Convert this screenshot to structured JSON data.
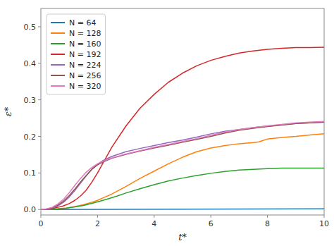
{
  "chart_data": {
    "type": "line",
    "xlabel": "t*",
    "ylabel": "ε*",
    "xlim": [
      0,
      10
    ],
    "ylim": [
      -0.015,
      0.55
    ],
    "xticks": [
      0,
      2,
      4,
      6,
      8,
      10
    ],
    "yticks": [
      {
        "value": 0,
        "label": "0.0"
      },
      0.1,
      0.2,
      0.3,
      0.4,
      0.5
    ],
    "grid": false,
    "legend": "upper left",
    "series": [
      {
        "name": "N = 64",
        "color": "#1f77b4",
        "x": [
          0,
          10
        ],
        "values": [
          0.0,
          0.002
        ]
      },
      {
        "name": "N = 128",
        "color": "#ff7f0e",
        "x": [
          0,
          0.3,
          0.6,
          0.9,
          1.2,
          1.5,
          1.8,
          2.0,
          2.2,
          2.5,
          3.0,
          3.5,
          4.0,
          4.5,
          5.0,
          5.5,
          6.0,
          6.5,
          7.0,
          7.5,
          7.7,
          8.0,
          8.5,
          9.0,
          9.5,
          10.0
        ],
        "values": [
          0.0,
          0.001,
          0.002,
          0.004,
          0.008,
          0.013,
          0.02,
          0.025,
          0.032,
          0.042,
          0.063,
          0.085,
          0.105,
          0.125,
          0.143,
          0.158,
          0.168,
          0.175,
          0.18,
          0.183,
          0.185,
          0.193,
          0.197,
          0.2,
          0.204,
          0.207
        ]
      },
      {
        "name": "N = 160",
        "color": "#2ca02c",
        "x": [
          0,
          0.3,
          0.6,
          0.9,
          1.2,
          1.5,
          1.8,
          2.1,
          2.4,
          2.7,
          3.0,
          3.5,
          4.0,
          4.5,
          5.0,
          5.5,
          6.0,
          6.5,
          7.0,
          7.5,
          8.0,
          8.5,
          9.0,
          9.5,
          10.0
        ],
        "values": [
          0.0,
          0.001,
          0.002,
          0.004,
          0.007,
          0.011,
          0.017,
          0.023,
          0.03,
          0.037,
          0.045,
          0.057,
          0.068,
          0.078,
          0.086,
          0.093,
          0.099,
          0.104,
          0.108,
          0.11,
          0.112,
          0.113,
          0.113,
          0.113,
          0.113
        ]
      },
      {
        "name": "N = 192",
        "color": "#d62728",
        "x": [
          0,
          0.2,
          0.4,
          0.6,
          0.8,
          1.0,
          1.2,
          1.4,
          1.6,
          1.8,
          2.0,
          2.2,
          2.5,
          3.0,
          3.5,
          4.0,
          4.5,
          5.0,
          5.5,
          6.0,
          6.5,
          7.0,
          7.5,
          8.0,
          8.5,
          9.0,
          9.5,
          10.0
        ],
        "values": [
          0.0,
          0.001,
          0.003,
          0.006,
          0.01,
          0.016,
          0.025,
          0.037,
          0.053,
          0.075,
          0.1,
          0.128,
          0.17,
          0.228,
          0.277,
          0.315,
          0.348,
          0.373,
          0.393,
          0.408,
          0.419,
          0.428,
          0.434,
          0.438,
          0.441,
          0.443,
          0.443,
          0.444
        ]
      },
      {
        "name": "N = 224",
        "color": "#9467bd",
        "x": [
          0,
          0.2,
          0.4,
          0.6,
          0.8,
          1.0,
          1.2,
          1.4,
          1.6,
          1.8,
          2.0,
          2.2,
          2.5,
          3.0,
          3.5,
          4.0,
          4.5,
          5.0,
          5.5,
          6.0,
          6.5,
          7.0,
          7.5,
          8.0,
          8.5,
          9.0,
          9.5,
          10.0
        ],
        "values": [
          0.0,
          0.001,
          0.004,
          0.01,
          0.02,
          0.034,
          0.052,
          0.072,
          0.092,
          0.11,
          0.124,
          0.134,
          0.145,
          0.158,
          0.167,
          0.175,
          0.183,
          0.19,
          0.198,
          0.207,
          0.214,
          0.219,
          0.224,
          0.228,
          0.232,
          0.235,
          0.237,
          0.239
        ]
      },
      {
        "name": "N = 256",
        "color": "#8c564b",
        "x": [
          0,
          0.2,
          0.4,
          0.6,
          0.8,
          1.0,
          1.2,
          1.4,
          1.6,
          1.8,
          2.0,
          2.2,
          2.5,
          3.0,
          3.5,
          4.0,
          4.5,
          5.0,
          5.5,
          6.0,
          6.5,
          7.0,
          7.5,
          8.0,
          8.5,
          9.0,
          9.5,
          10.0
        ],
        "values": [
          0.0,
          0.001,
          0.005,
          0.012,
          0.023,
          0.038,
          0.056,
          0.075,
          0.093,
          0.11,
          0.122,
          0.13,
          0.14,
          0.151,
          0.16,
          0.168,
          0.176,
          0.184,
          0.192,
          0.2,
          0.209,
          0.217,
          0.222,
          0.227,
          0.231,
          0.235,
          0.237,
          0.239
        ]
      },
      {
        "name": "N = 320",
        "color": "#e377c2",
        "x": [
          0,
          0.2,
          0.4,
          0.6,
          0.8,
          1.0,
          1.2,
          1.4,
          1.6,
          1.8,
          2.0,
          2.2,
          2.5,
          3.0,
          3.5,
          4.0,
          4.5,
          5.0,
          5.5,
          6.0,
          6.5,
          7.0,
          7.5,
          8.0,
          8.5,
          9.0,
          9.5,
          10.0
        ],
        "values": [
          0.0,
          0.002,
          0.006,
          0.015,
          0.028,
          0.046,
          0.066,
          0.085,
          0.102,
          0.115,
          0.125,
          0.132,
          0.141,
          0.152,
          0.161,
          0.17,
          0.178,
          0.186,
          0.194,
          0.203,
          0.212,
          0.219,
          0.224,
          0.229,
          0.233,
          0.237,
          0.239,
          0.241
        ]
      }
    ]
  }
}
